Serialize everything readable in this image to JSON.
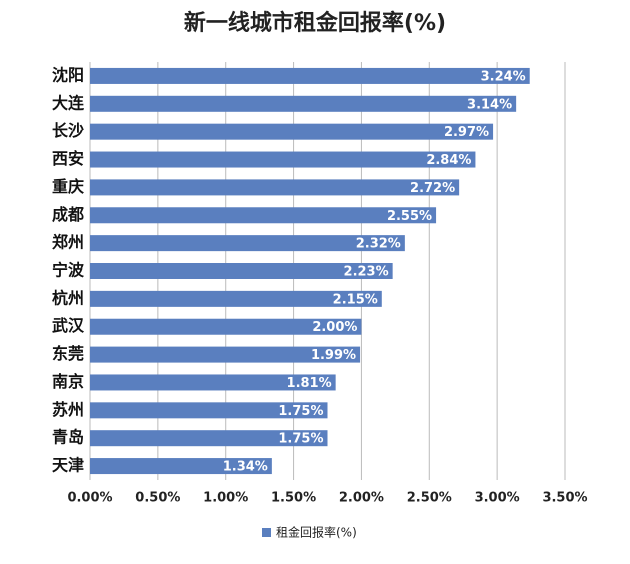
{
  "chart_data": {
    "type": "hbar",
    "title": "新一线城市租金回报率(%)",
    "categories": [
      "沈阳",
      "大连",
      "长沙",
      "西安",
      "重庆",
      "成都",
      "郑州",
      "宁波",
      "杭州",
      "武汉",
      "东莞",
      "南京",
      "苏州",
      "青岛",
      "天津"
    ],
    "series": [
      {
        "name": "租金回报率(%)",
        "color": "#5a7fbf",
        "values": [
          3.24,
          3.14,
          2.97,
          2.84,
          2.72,
          2.55,
          2.32,
          2.23,
          2.15,
          2.0,
          1.99,
          1.81,
          1.75,
          1.75,
          1.34
        ],
        "value_labels": [
          "3.24%",
          "3.14%",
          "2.97%",
          "2.84%",
          "2.72%",
          "2.55%",
          "2.32%",
          "2.23%",
          "2.15%",
          "2.00%",
          "1.99%",
          "1.81%",
          "1.75%",
          "1.75%",
          "1.34%"
        ]
      }
    ],
    "xlim": [
      0,
      3.5
    ],
    "xticks": [
      {
        "value": 0,
        "label": "0.00%"
      },
      {
        "value": 0.5,
        "label": "0.50%"
      },
      {
        "value": 1,
        "label": "1.00%"
      },
      {
        "value": 1.5,
        "label": "1.50%"
      },
      {
        "value": 2,
        "label": "2.00%"
      },
      {
        "value": 2.5,
        "label": "2.50%"
      },
      {
        "value": 3,
        "label": "3.00%"
      },
      {
        "value": 3.5,
        "label": "3.50%"
      }
    ],
    "grid": true,
    "legend": "bottom"
  }
}
